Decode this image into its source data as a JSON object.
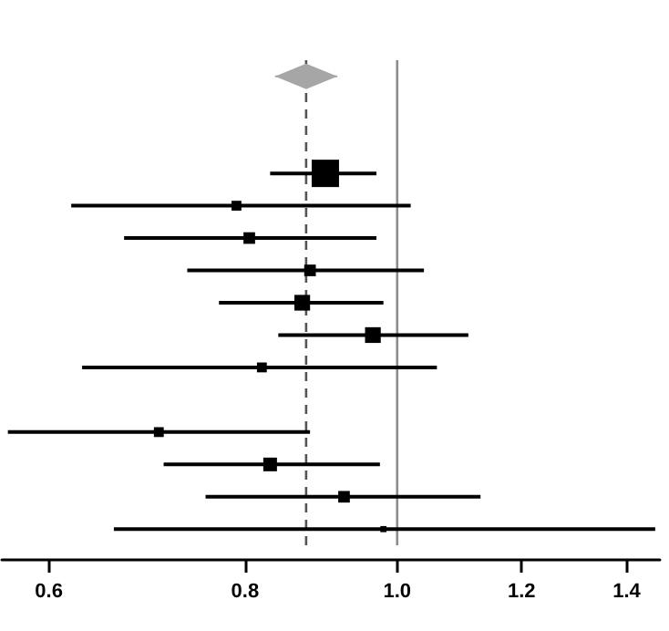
{
  "chart_data": {
    "type": "bubble",
    "orientation": "horizontal",
    "log": "x",
    "grid": false,
    "tick_labels": "x",
    "categories": [
      null,
      null,
      null,
      null,
      null,
      null,
      null,
      null,
      null,
      null,
      null,
      null,
      null,
      null,
      null
    ],
    "series": [
      {
        "type": "scatter",
        "marker": "diamond",
        "color": "#a6a6a6",
        "values": [
          0.875,
          null,
          null,
          null,
          null,
          null,
          null,
          null,
          null,
          null,
          null,
          null,
          null,
          null,
          null
        ],
        "errors": [
          [
            0.836,
            0.916
          ],
          null,
          null,
          null,
          null,
          null,
          null,
          null,
          null,
          null,
          null,
          null,
          null,
          null,
          null
        ]
      },
      {
        "marker": "square",
        "color": "#000000",
        "values": [
          null,
          null,
          null,
          0.9,
          0.79,
          0.805,
          0.88,
          0.87,
          0.965,
          0.82,
          null,
          0.705,
          0.83,
          0.925,
          0.98
        ],
        "errors": [
          null,
          null,
          null,
          [
            0.83,
            0.97
          ],
          [
            0.62,
            1.02
          ],
          [
            0.67,
            0.97
          ],
          [
            0.735,
            1.04
          ],
          [
            0.77,
            0.98
          ],
          [
            0.84,
            1.11
          ],
          [
            0.63,
            1.06
          ],
          null,
          [
            0.565,
            0.88
          ],
          [
            0.71,
            0.975
          ],
          [
            0.755,
            1.13
          ],
          [
            0.66,
            1.46
          ]
        ],
        "sizes": [
          null,
          null,
          null,
          1,
          0.13,
          0.18,
          0.18,
          0.33,
          0.33,
          0.13,
          null,
          0.13,
          0.25,
          0.18,
          0.05
        ]
      }
    ],
    "xlim": [
      0.56,
      1.47
    ],
    "xticks": [
      0.6,
      0.8,
      {
        "value": 1,
        "label": "1.0"
      },
      1.2,
      1.4
    ],
    "ref_lines": [
      {
        "axis": "x",
        "value": 0.875,
        "color": "#555555",
        "line_style": "dashed"
      },
      {
        "axis": "x",
        "value": 1,
        "color": "#8c8c8c",
        "line_style": "solid"
      }
    ]
  }
}
